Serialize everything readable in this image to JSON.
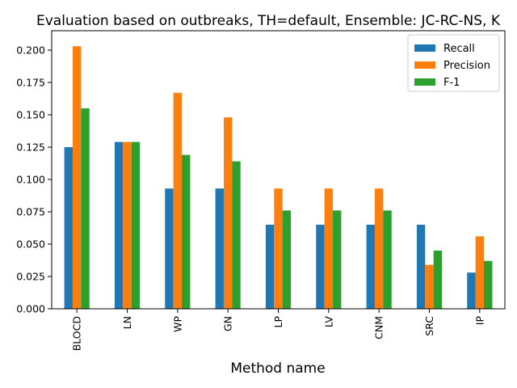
{
  "chart_data": {
    "type": "bar",
    "title": "Evaluation based on outbreaks, TH=default, Ensemble: JC-RC-NS, K",
    "xlabel": "Method name",
    "ylabel": "",
    "ylim": [
      0,
      0.215
    ],
    "yticks": [
      "0.000",
      "0.025",
      "0.050",
      "0.075",
      "0.100",
      "0.125",
      "0.150",
      "0.175",
      "0.200"
    ],
    "categories": [
      "BLOCD",
      "LN",
      "WP",
      "GN",
      "LP",
      "LV",
      "CNM",
      "SRC",
      "IP"
    ],
    "series": [
      {
        "name": "Recall",
        "color": "#1f77b4",
        "values": [
          0.125,
          0.129,
          0.093,
          0.093,
          0.065,
          0.065,
          0.065,
          0.065,
          0.028
        ]
      },
      {
        "name": "Precision",
        "color": "#ff7f0e",
        "values": [
          0.203,
          0.129,
          0.167,
          0.148,
          0.093,
          0.093,
          0.093,
          0.034,
          0.056
        ]
      },
      {
        "name": "F-1",
        "color": "#2ca02c",
        "values": [
          0.155,
          0.129,
          0.119,
          0.114,
          0.076,
          0.076,
          0.076,
          0.045,
          0.037
        ]
      }
    ],
    "legend": "top-right",
    "grid": false
  }
}
